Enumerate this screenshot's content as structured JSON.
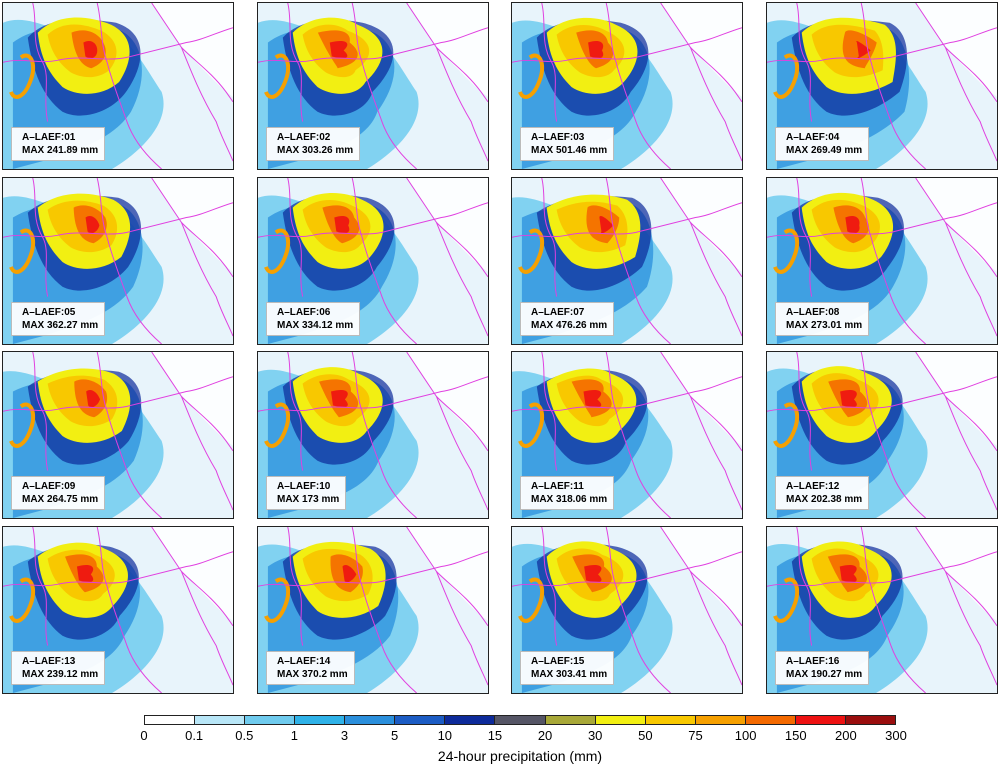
{
  "panels": [
    {
      "id": "A–LAEF:01",
      "max": "MAX 241.89 mm"
    },
    {
      "id": "A–LAEF:02",
      "max": "MAX 303.26 mm"
    },
    {
      "id": "A–LAEF:03",
      "max": "MAX 501.46 mm"
    },
    {
      "id": "A–LAEF:04",
      "max": "MAX 269.49 mm"
    },
    {
      "id": "A–LAEF:05",
      "max": "MAX 362.27 mm"
    },
    {
      "id": "A–LAEF:06",
      "max": "MAX 334.12 mm"
    },
    {
      "id": "A–LAEF:07",
      "max": "MAX 476.26 mm"
    },
    {
      "id": "A–LAEF:08",
      "max": "MAX 273.01 mm"
    },
    {
      "id": "A–LAEF:09",
      "max": "MAX 264.75 mm"
    },
    {
      "id": "A–LAEF:10",
      "max": "MAX 173 mm"
    },
    {
      "id": "A–LAEF:11",
      "max": "MAX 318.06 mm"
    },
    {
      "id": "A–LAEF:12",
      "max": "MAX 202.38 mm"
    },
    {
      "id": "A–LAEF:13",
      "max": "MAX 239.12 mm"
    },
    {
      "id": "A–LAEF:14",
      "max": "MAX 370.2 mm"
    },
    {
      "id": "A–LAEF:15",
      "max": "MAX 303.41 mm"
    },
    {
      "id": "A–LAEF:16",
      "max": "MAX 190.27 mm"
    }
  ],
  "legend": {
    "title": "24-hour precipitation (mm)",
    "ticks": [
      "0",
      "0.1",
      "0.5",
      "1",
      "3",
      "5",
      "10",
      "15",
      "20",
      "30",
      "50",
      "75",
      "100",
      "150",
      "200",
      "300"
    ],
    "colors": [
      "#ffffff",
      "#b8e6f7",
      "#6fcbee",
      "#2fb2e8",
      "#2a8fdc",
      "#1c5cc4",
      "#0d2a9a",
      "#555566",
      "#a8a838",
      "#f2ef12",
      "#f8c800",
      "#f6a000",
      "#f46a00",
      "#ee1212",
      "#9a0e0e"
    ]
  },
  "colors": {
    "border_lines": "#e040e0",
    "map_background": "#e8f4fb"
  }
}
